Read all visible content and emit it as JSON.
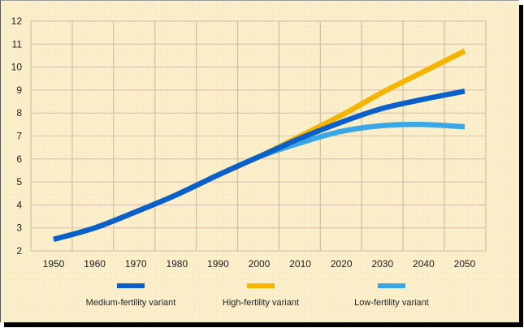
{
  "chart_data": {
    "type": "line",
    "title": "",
    "xlabel": "",
    "ylabel": "",
    "x": [
      1950,
      1960,
      1970,
      1980,
      1990,
      2000,
      2010,
      2020,
      2030,
      2040,
      2050
    ],
    "xlim": [
      1950,
      2050
    ],
    "ylim": [
      2,
      12
    ],
    "y_ticks": [
      2,
      3,
      4,
      5,
      6,
      7,
      8,
      9,
      10,
      11,
      12
    ],
    "x_tick_labels": [
      "1950",
      "1960",
      "1970",
      "1980",
      "1990",
      "2000",
      "2010",
      "2020",
      "2030",
      "2040",
      "2050"
    ],
    "grid": true,
    "legend_position": "bottom",
    "series": [
      {
        "name": "High-fertility variant",
        "color": "#f5b400",
        "values": [
          2.5,
          3.0,
          3.7,
          4.45,
          5.3,
          6.1,
          7.0,
          7.9,
          8.9,
          9.8,
          10.7
        ]
      },
      {
        "name": "Low-fertility variant",
        "color": "#3aa6e6",
        "values": [
          2.5,
          3.0,
          3.7,
          4.45,
          5.3,
          6.1,
          6.7,
          7.2,
          7.45,
          7.5,
          7.4
        ]
      },
      {
        "name": "Medium-fertility variant",
        "color": "#0a5fc8",
        "values": [
          2.5,
          3.0,
          3.7,
          4.45,
          5.3,
          6.1,
          6.9,
          7.6,
          8.2,
          8.6,
          8.95
        ]
      }
    ],
    "legend": [
      {
        "label": "Medium-fertility variant",
        "color": "#0a5fc8"
      },
      {
        "label": "High-fertility variant",
        "color": "#f5b400"
      },
      {
        "label": "Low-fertility variant",
        "color": "#3aa6e6"
      }
    ]
  }
}
